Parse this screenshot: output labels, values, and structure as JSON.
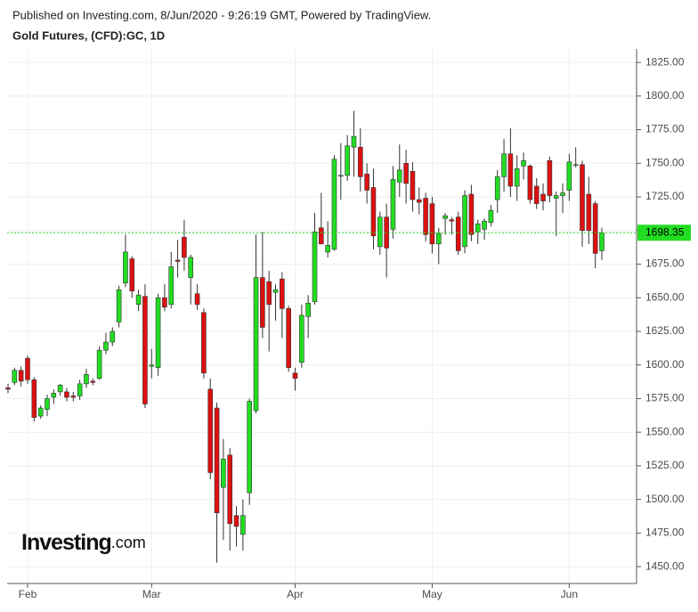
{
  "chart_data": {
    "type": "candlestick",
    "header": "Published on Investing.com, 8/Jun/2020 - 9:26:19 GMT, Powered by TradingView.",
    "title": "Gold Futures, (CFD):GC, 1D",
    "logo": {
      "main": "Investing",
      "suffix": ".com"
    },
    "up_color": "#22dd22",
    "down_color": "#dd1111",
    "last_line_color": "#22dd22",
    "grid": true,
    "categories": [
      null,
      null,
      null,
      "Feb",
      null,
      null,
      null,
      null,
      null,
      null,
      null,
      null,
      null,
      null,
      null,
      null,
      null,
      null,
      null,
      null,
      null,
      null,
      "Mar",
      null,
      null,
      null,
      null,
      null,
      null,
      null,
      null,
      null,
      null,
      null,
      null,
      null,
      null,
      null,
      null,
      null,
      null,
      null,
      null,
      null,
      "Apr",
      null,
      null,
      null,
      null,
      null,
      null,
      null,
      null,
      null,
      null,
      null,
      null,
      null,
      null,
      null,
      null,
      null,
      null,
      null,
      null,
      "May",
      null,
      null,
      null,
      null,
      null,
      null,
      null,
      null,
      null,
      null,
      null,
      null,
      null,
      null,
      null,
      null,
      null,
      null,
      null,
      null,
      "Jun",
      null,
      null,
      null,
      null,
      null
    ],
    "open": [
      1583,
      1587,
      1596,
      1605,
      1589,
      1562,
      1567,
      1576,
      1580,
      1580,
      1577,
      1577,
      1586,
      1588,
      1590,
      1611,
      1617,
      1632,
      1661,
      1679,
      1645,
      1651,
      1599,
      1598,
      1650,
      1645,
      1678,
      1695,
      1665,
      1653,
      1639,
      1582,
      1568,
      1509,
      1533,
      1488,
      1474,
      1505,
      1566,
      1665,
      1662,
      1654,
      1664,
      1642,
      1594,
      1602,
      1636,
      1647,
      1702,
      1684,
      1686,
      1741,
      1741,
      1762,
      1762,
      1742,
      1732,
      1688,
      1710,
      1701,
      1736,
      1750,
      1744,
      1723,
      1724,
      1720,
      1690,
      1709,
      1708,
      1710,
      1688,
      1727,
      1699,
      1701,
      1706,
      1723,
      1740,
      1757,
      1733,
      1748,
      1748,
      1733,
      1727,
      1752,
      1724,
      1726,
      1730,
      1749,
      1749,
      1727,
      1720,
      1685
    ],
    "high": [
      1586,
      1598,
      1599,
      1607,
      1591,
      1570,
      1578,
      1582,
      1586,
      1583,
      1580,
      1589,
      1597,
      1590,
      1614,
      1624,
      1628,
      1659,
      1697,
      1681,
      1656,
      1660,
      1612,
      1653,
      1660,
      1684,
      1693,
      1708,
      1682,
      1660,
      1642,
      1590,
      1572,
      1545,
      1538,
      1495,
      1500,
      1575,
      1697,
      1699,
      1670,
      1660,
      1669,
      1644,
      1598,
      1645,
      1652,
      1713,
      1728,
      1707,
      1756,
      1765,
      1771,
      1789,
      1776,
      1750,
      1746,
      1714,
      1720,
      1748,
      1764,
      1760,
      1751,
      1732,
      1728,
      1725,
      1702,
      1713,
      1710,
      1714,
      1730,
      1734,
      1708,
      1709,
      1719,
      1745,
      1768,
      1776,
      1756,
      1758,
      1749,
      1739,
      1735,
      1755,
      1729,
      1735,
      1757,
      1762,
      1752,
      1740,
      1722,
      1702
    ],
    "low": [
      1579,
      1585,
      1584,
      1586,
      1558,
      1560,
      1562,
      1571,
      1577,
      1573,
      1573,
      1574,
      1583,
      1585,
      1589,
      1608,
      1614,
      1628,
      1658,
      1650,
      1640,
      1568,
      1590,
      1592,
      1640,
      1642,
      1665,
      1670,
      1645,
      1641,
      1590,
      1515,
      1453,
      1470,
      1462,
      1465,
      1462,
      1496,
      1564,
      1620,
      1610,
      1633,
      1620,
      1595,
      1581,
      1598,
      1620,
      1645,
      1690,
      1680,
      1685,
      1723,
      1737,
      1740,
      1729,
      1720,
      1686,
      1682,
      1665,
      1694,
      1725,
      1720,
      1714,
      1712,
      1692,
      1683,
      1675,
      1697,
      1697,
      1682,
      1683,
      1692,
      1690,
      1693,
      1703,
      1713,
      1729,
      1725,
      1722,
      1738,
      1720,
      1716,
      1715,
      1721,
      1696,
      1713,
      1722,
      1747,
      1688,
      1690,
      1672,
      1678
    ],
    "close": [
      1582,
      1596,
      1588,
      1589,
      1561,
      1568,
      1575,
      1579,
      1585,
      1576,
      1576,
      1586,
      1593,
      1587,
      1611,
      1617,
      1625,
      1656,
      1684,
      1655,
      1652,
      1571,
      1600,
      1650,
      1643,
      1673,
      1677,
      1680,
      1680,
      1645,
      1594,
      1520,
      1490,
      1530,
      1482,
      1480,
      1488,
      1573,
      1665,
      1628,
      1645,
      1656,
      1642,
      1598,
      1590,
      1637,
      1646,
      1699,
      1690,
      1689,
      1753,
      1741,
      1763,
      1770,
      1740,
      1730,
      1696,
      1710,
      1687,
      1738,
      1745,
      1735,
      1723,
      1721,
      1697,
      1690,
      1698,
      1711,
      1707,
      1685,
      1726,
      1697,
      1705,
      1707,
      1715,
      1740,
      1757,
      1733,
      1746,
      1752,
      1723,
      1720,
      1722,
      1726,
      1726,
      1728,
      1751,
      1749,
      1700,
      1700,
      1683,
      1698.35
    ],
    "ylim": [
      1437.5,
      1835
    ],
    "yticks": [
      {
        "value": 1450,
        "label": "1450.00"
      },
      {
        "value": 1475,
        "label": "1475.00"
      },
      {
        "value": 1500,
        "label": "1500.00"
      },
      {
        "value": 1525,
        "label": "1525.00"
      },
      {
        "value": 1550,
        "label": "1550.00"
      },
      {
        "value": 1575,
        "label": "1575.00"
      },
      {
        "value": 1600,
        "label": "1600.00"
      },
      {
        "value": 1625,
        "label": "1625.00"
      },
      {
        "value": 1650,
        "label": "1650.00"
      },
      {
        "value": 1675,
        "label": "1675.00"
      },
      {
        "value": 1700,
        "label": "1700.00"
      },
      {
        "value": 1725,
        "label": "1725.00"
      },
      {
        "value": 1750,
        "label": "1750.00"
      },
      {
        "value": 1775,
        "label": "1775.00"
      },
      {
        "value": 1800,
        "label": "1800.00"
      },
      {
        "value": 1825,
        "label": "1825.00"
      }
    ]
  }
}
